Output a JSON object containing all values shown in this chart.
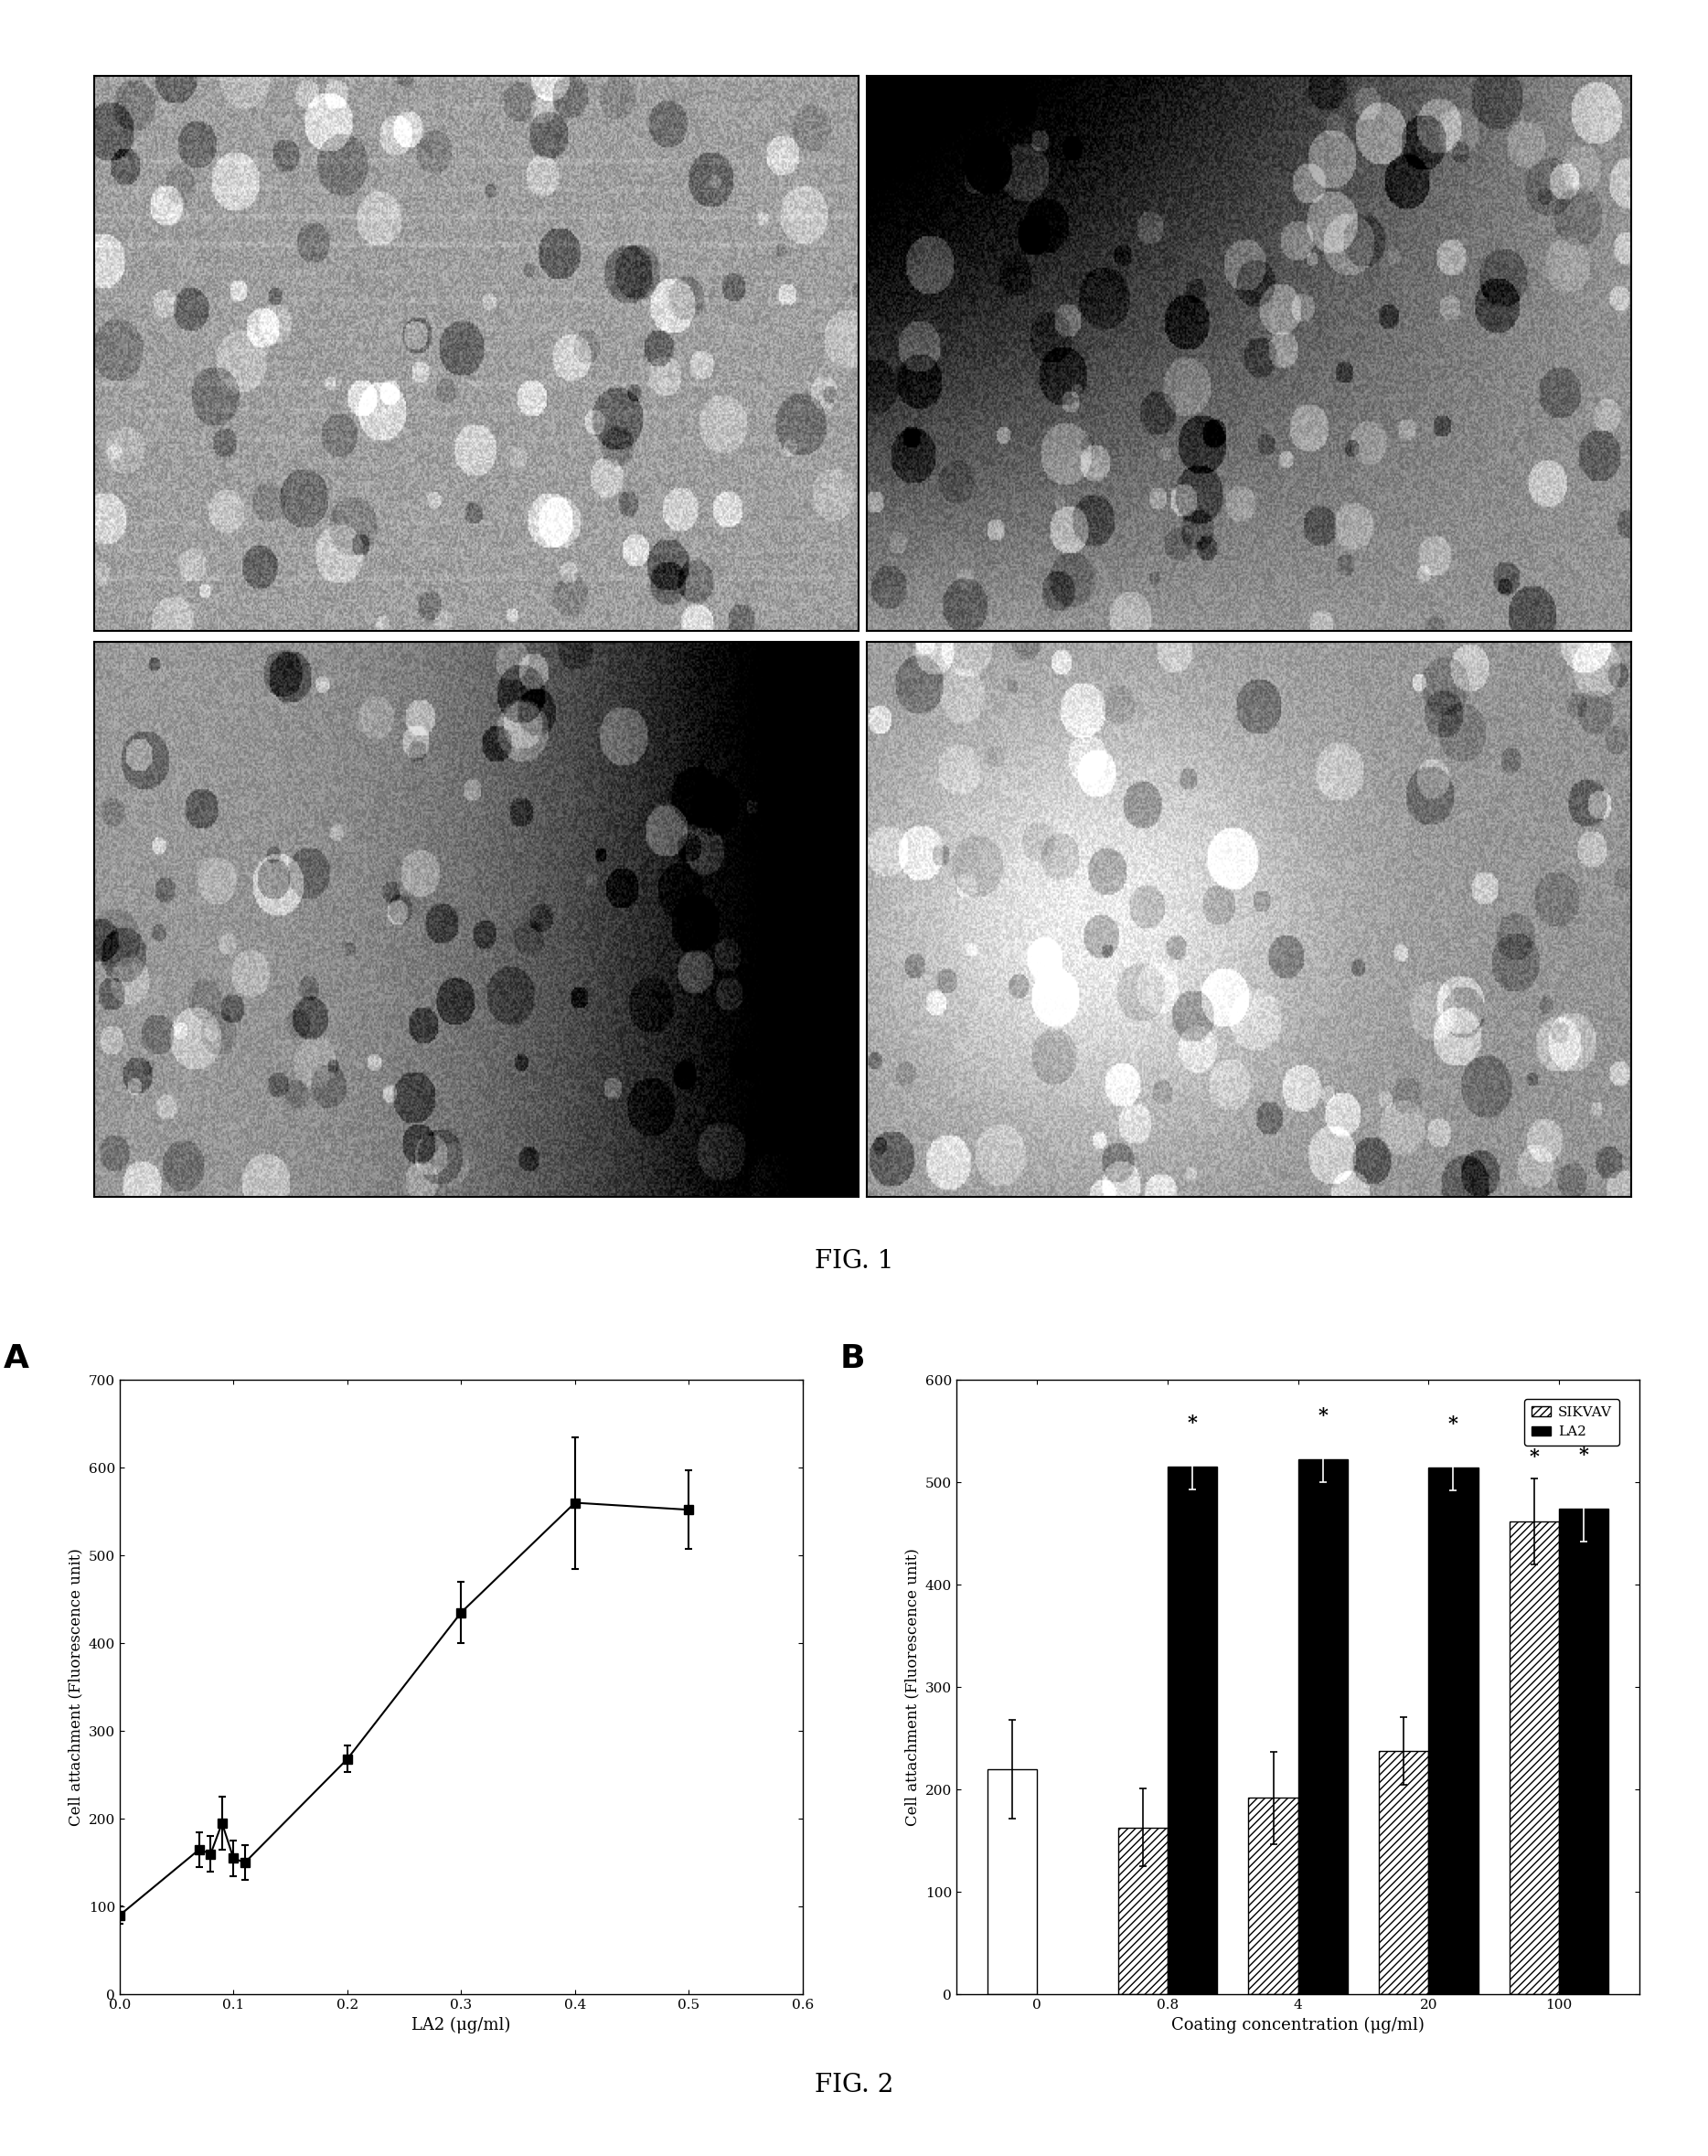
{
  "fig1_label": "FIG. 1",
  "fig2_label": "FIG. 2",
  "panel_A_label": "A",
  "panel_B_label": "B",
  "lineplot": {
    "x": [
      0.0,
      0.07,
      0.08,
      0.09,
      0.1,
      0.11,
      0.2,
      0.3,
      0.4,
      0.5
    ],
    "y": [
      90,
      165,
      160,
      195,
      155,
      150,
      268,
      435,
      560,
      552
    ],
    "yerr": [
      10,
      20,
      20,
      30,
      20,
      20,
      15,
      35,
      75,
      45
    ],
    "xlabel": "LA2 (μg/ml)",
    "ylabel": "Cell attachment (Fluorescence unit)",
    "ylim": [
      0,
      700
    ],
    "xlim": [
      0.0,
      0.6
    ],
    "yticks": [
      0,
      100,
      200,
      300,
      400,
      500,
      600,
      700
    ],
    "xticks": [
      0.0,
      0.1,
      0.2,
      0.3,
      0.4,
      0.5,
      0.6
    ]
  },
  "barplot": {
    "categories": [
      "0",
      "0.8",
      "4",
      "20",
      "100"
    ],
    "sikvav_values": [
      220,
      163,
      192,
      238,
      462
    ],
    "sikvav_errors": [
      48,
      38,
      45,
      33,
      42
    ],
    "la2_values": [
      0,
      515,
      522,
      514,
      474
    ],
    "la2_errors": [
      0,
      22,
      22,
      22,
      32
    ],
    "xlabel": "Coating concentration (μg/ml)",
    "ylabel": "Cell attachment (Fluorescence unit)",
    "ylim": [
      0,
      600
    ],
    "yticks": [
      0,
      100,
      200,
      300,
      400,
      500,
      600
    ],
    "legend_sikvav": "SIKVAV",
    "legend_la2": "LA2"
  }
}
